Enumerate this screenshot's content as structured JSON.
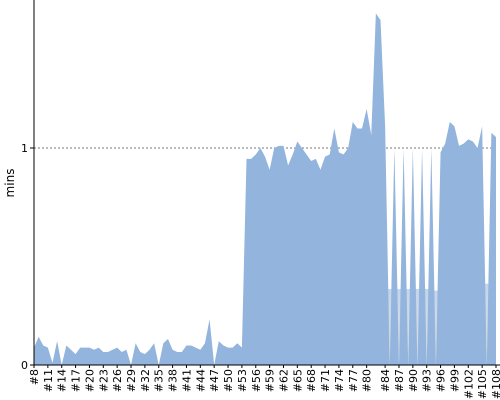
{
  "chart_data": {
    "type": "area",
    "title": "",
    "xlabel": "",
    "ylabel": "mins",
    "ylim": [
      0,
      1.6
    ],
    "yticks": [
      0,
      1
    ],
    "grid": true,
    "legend": "none",
    "colors": {
      "fill": "#92b4dd",
      "gap": "#c8c8c8",
      "grid": "#777777",
      "axis": "#000000"
    },
    "x": [
      "#8",
      "#9",
      "#10",
      "#11",
      "#12",
      "#13",
      "#14",
      "#15",
      "#16",
      "#17",
      "#18",
      "#19",
      "#20",
      "#21",
      "#22",
      "#23",
      "#24",
      "#25",
      "#26",
      "#27",
      "#28",
      "#29",
      "#30",
      "#31",
      "#32",
      "#33",
      "#34",
      "#35",
      "#36",
      "#37",
      "#38",
      "#39",
      "#40",
      "#41",
      "#42",
      "#43",
      "#44",
      "#45",
      "#46",
      "#47",
      "#48",
      "#49",
      "#50",
      "#51",
      "#52",
      "#53",
      "#54",
      "#55",
      "#56",
      "#57",
      "#58",
      "#59",
      "#60",
      "#61",
      "#62",
      "#63",
      "#64",
      "#65",
      "#66",
      "#67",
      "#68",
      "#69",
      "#70",
      "#71",
      "#72",
      "#73",
      "#74",
      "#75",
      "#76",
      "#77",
      "#78",
      "#79",
      "#80",
      "#81",
      "#82",
      "#83",
      "#84",
      "#85",
      "#86",
      "#87",
      "#88",
      "#89",
      "#90",
      "#91",
      "#92",
      "#93",
      "#94",
      "#95",
      "#96",
      "#97",
      "#98",
      "#99",
      "#100",
      "#101",
      "#102",
      "#103",
      "#104",
      "#105",
      "#106",
      "#107",
      "#108"
    ],
    "xtick_labels": [
      "#8",
      "#11",
      "#14",
      "#17",
      "#20",
      "#23",
      "#26",
      "#29",
      "#32",
      "#35",
      "#38",
      "#41",
      "#44",
      "#47",
      "#50",
      "#53",
      "#56",
      "#59",
      "#62",
      "#65",
      "#68",
      "#71",
      "#74",
      "#77",
      "#80",
      "#84",
      "#87",
      "#90",
      "#93",
      "#96",
      "#99",
      "#102",
      "#105",
      "#108"
    ],
    "values": [
      0.08,
      0.13,
      0.09,
      0.08,
      0.01,
      0.11,
      0.0,
      0.09,
      0.07,
      0.05,
      0.08,
      0.08,
      0.08,
      0.07,
      0.08,
      0.06,
      0.06,
      0.07,
      0.08,
      0.06,
      0.07,
      0.0,
      0.1,
      0.06,
      0.05,
      0.07,
      0.1,
      0.0,
      0.1,
      0.12,
      0.07,
      0.06,
      0.06,
      0.09,
      0.09,
      0.08,
      0.07,
      0.1,
      0.21,
      0.0,
      0.11,
      0.09,
      0.08,
      0.08,
      0.1,
      0.08,
      0.95,
      0.95,
      0.97,
      1.0,
      0.96,
      0.9,
      1.0,
      1.01,
      1.01,
      0.92,
      0.97,
      1.03,
      1.0,
      0.97,
      0.94,
      0.95,
      0.9,
      0.96,
      0.97,
      1.09,
      0.98,
      0.97,
      1.0,
      1.12,
      1.09,
      1.09,
      1.18,
      1.06,
      1.62,
      1.59,
      1.1,
      0.0,
      1.0,
      0.0,
      1.0,
      0.0,
      1.0,
      0.0,
      1.0,
      0.0,
      1.0,
      0.0,
      0.98,
      1.02,
      1.12,
      1.1,
      1.01,
      1.02,
      1.04,
      1.03,
      1.0,
      1.1,
      0.0,
      1.07,
      1.05
    ]
  }
}
